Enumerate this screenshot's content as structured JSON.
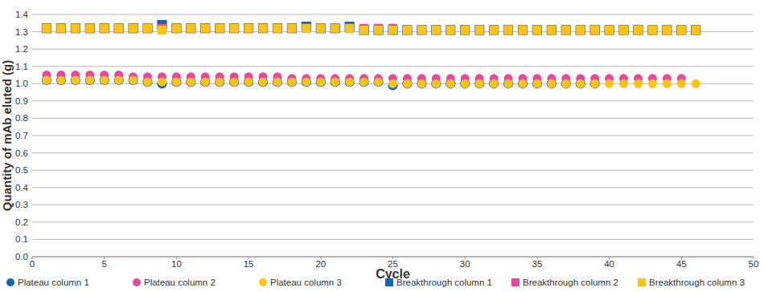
{
  "chart_data": {
    "type": "scatter",
    "x_label": "Cycle",
    "y_label": "Quantity of mAb eluted (g)",
    "x": [
      1,
      2,
      3,
      4,
      5,
      6,
      7,
      8,
      9,
      10,
      11,
      12,
      13,
      14,
      15,
      16,
      17,
      18,
      19,
      20,
      21,
      22,
      23,
      24,
      25,
      26,
      27,
      28,
      29,
      30,
      31,
      32,
      33,
      34,
      35,
      36,
      37,
      38,
      39,
      40,
      41,
      42,
      43,
      44,
      45,
      46
    ],
    "xlim": [
      0,
      50
    ],
    "xticks": [
      0,
      5,
      10,
      15,
      20,
      25,
      30,
      35,
      40,
      45,
      50
    ],
    "ylim": [
      0,
      1.4
    ],
    "yticks": [
      {
        "value": 0,
        "label": "0.0"
      },
      0.1,
      0.2,
      0.3,
      0.4,
      0.5,
      0.6,
      0.7,
      0.8,
      0.9,
      {
        "value": 1,
        "label": "1.0"
      },
      1.1,
      1.2,
      1.3,
      1.4
    ],
    "grid": true,
    "legend": "bottom",
    "series": [
      {
        "name": "Plateau column 1",
        "color": "#1565b0",
        "marker": "circle",
        "values": [
          1.02,
          1.02,
          1.02,
          1.02,
          1.02,
          1.02,
          1.02,
          1.01,
          1.0,
          1.01,
          1.01,
          1.01,
          1.01,
          1.01,
          1.01,
          1.01,
          1.01,
          1.01,
          1.01,
          1.01,
          1.01,
          1.01,
          1.01,
          1.01,
          0.99,
          1.0,
          1.0,
          1.0,
          1.0,
          1.0,
          1.0,
          1.0,
          1.0,
          1.0,
          1.0,
          1.0,
          1.0,
          1.0,
          1.0,
          null,
          null,
          null,
          null,
          null,
          null,
          null
        ]
      },
      {
        "name": "Plateau column 2",
        "color": "#e6479f",
        "marker": "circle",
        "values": [
          1.05,
          1.05,
          1.05,
          1.05,
          1.05,
          1.05,
          1.04,
          1.04,
          1.04,
          1.04,
          1.04,
          1.04,
          1.04,
          1.04,
          1.04,
          1.04,
          1.04,
          1.03,
          1.03,
          1.03,
          1.03,
          1.03,
          1.03,
          1.03,
          1.03,
          1.03,
          1.03,
          1.03,
          1.03,
          1.03,
          1.03,
          1.03,
          1.03,
          1.03,
          1.03,
          1.03,
          1.03,
          1.03,
          1.03,
          1.03,
          1.03,
          1.03,
          1.03,
          1.03,
          1.03,
          null
        ]
      },
      {
        "name": "Plateau column 3",
        "color": "#f9c41a",
        "marker": "circle",
        "values": [
          1.02,
          1.02,
          1.02,
          1.02,
          1.02,
          1.02,
          1.02,
          1.01,
          1.01,
          1.01,
          1.01,
          1.01,
          1.01,
          1.01,
          1.01,
          1.01,
          1.01,
          1.01,
          1.01,
          1.01,
          1.01,
          1.01,
          1.01,
          1.01,
          1.0,
          1.0,
          1.0,
          1.0,
          1.0,
          1.0,
          1.0,
          1.0,
          1.0,
          1.0,
          1.0,
          1.0,
          1.0,
          1.0,
          1.0,
          1.0,
          1.0,
          1.0,
          1.0,
          1.0,
          1.0,
          1.0
        ]
      },
      {
        "name": "Breakthrough column 1",
        "color": "#1565b0",
        "marker": "square",
        "values": [
          1.32,
          1.32,
          1.32,
          1.32,
          1.32,
          1.32,
          1.32,
          1.32,
          1.34,
          1.32,
          1.32,
          1.32,
          1.32,
          1.32,
          1.32,
          1.32,
          1.32,
          1.32,
          1.33,
          1.32,
          1.32,
          1.33,
          1.31,
          1.31,
          1.31,
          1.31,
          1.31,
          1.31,
          1.31,
          1.31,
          1.31,
          1.31,
          1.31,
          1.31,
          1.31,
          1.31,
          1.31,
          1.31,
          1.31,
          1.31,
          1.31,
          1.31,
          1.31,
          1.31,
          1.31,
          1.31
        ]
      },
      {
        "name": "Breakthrough column 2",
        "color": "#e6479f",
        "marker": "square",
        "values": [
          1.32,
          1.32,
          1.32,
          1.32,
          1.32,
          1.32,
          1.32,
          1.32,
          1.32,
          1.32,
          1.32,
          1.32,
          1.32,
          1.32,
          1.32,
          1.32,
          1.32,
          1.32,
          1.32,
          1.32,
          1.32,
          1.32,
          1.32,
          1.32,
          1.32,
          1.31,
          1.31,
          1.31,
          1.31,
          1.31,
          1.31,
          1.31,
          1.31,
          1.31,
          1.31,
          1.31,
          1.31,
          1.31,
          1.31,
          1.31,
          1.31,
          1.31,
          1.31,
          1.31,
          1.31,
          null
        ]
      },
      {
        "name": "Breakthrough column 3",
        "color": "#f9c41a",
        "marker": "square",
        "values": [
          1.32,
          1.32,
          1.32,
          1.32,
          1.32,
          1.32,
          1.32,
          1.32,
          1.31,
          1.32,
          1.32,
          1.32,
          1.32,
          1.32,
          1.32,
          1.32,
          1.32,
          1.32,
          1.32,
          1.32,
          1.32,
          1.32,
          1.31,
          1.31,
          1.31,
          1.31,
          1.31,
          1.31,
          1.31,
          1.31,
          1.31,
          1.31,
          1.31,
          1.31,
          1.31,
          1.31,
          1.31,
          1.31,
          1.31,
          1.31,
          1.31,
          1.31,
          1.31,
          1.31,
          1.31,
          1.31
        ]
      }
    ]
  }
}
